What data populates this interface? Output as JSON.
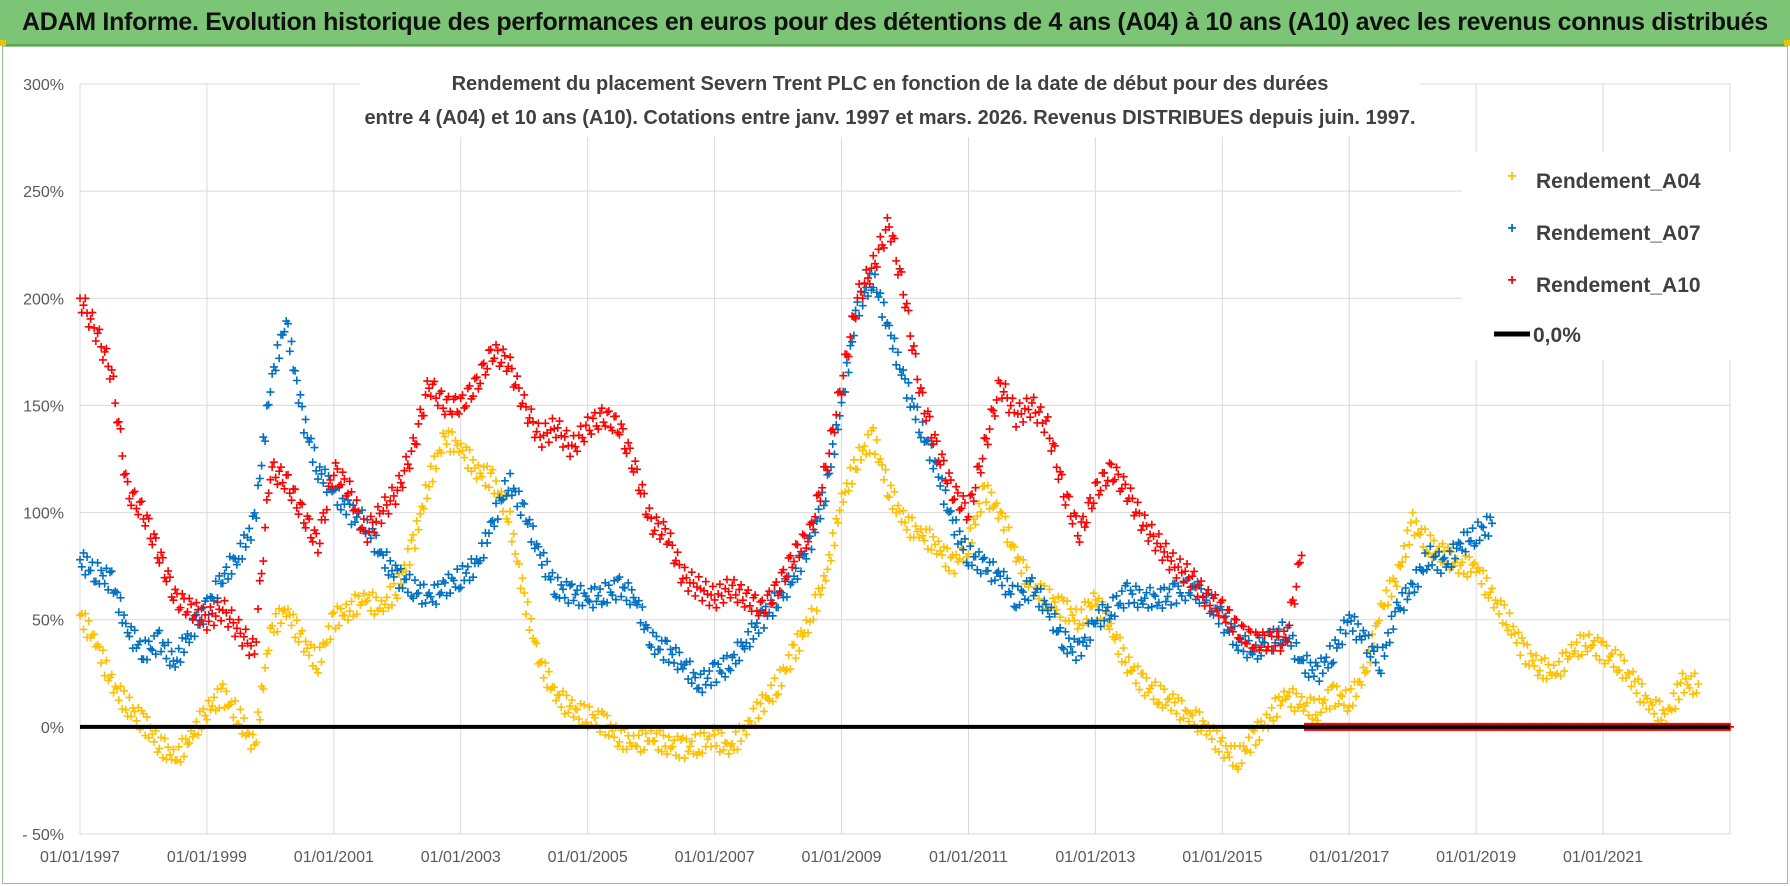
{
  "banner": {
    "title": "ADAM Informe. Evolution historique des performances en euros pour des détentions de 4 ans (A04) à 10 ans (A10) avec les revenus connus distribués"
  },
  "colors": {
    "banner_bg": "#7cc576",
    "a04": "#ffc000",
    "a07": "#0070c0",
    "a10": "#ff0000",
    "zero": "#000000",
    "grid": "#d9d9d9"
  },
  "chart_data": {
    "type": "scatter",
    "title_line1": "Rendement du placement Severn Trent PLC en fonction de la date de début pour des durées",
    "title_line2": "entre 4 (A04) et 10 ans (A10).  Cotations entre janv. 1997 et mars. 2026.  Revenus DISTRIBUES depuis juin. 1997.",
    "xlabel": "",
    "ylabel": "",
    "xlim": [
      1997.0,
      2023.0
    ],
    "ylim": [
      -50,
      300
    ],
    "y_ticks": [
      -50,
      0,
      50,
      100,
      150,
      200,
      250,
      300
    ],
    "y_tick_labels": [
      "- 50%",
      "0%",
      "50%",
      "100%",
      "150%",
      "200%",
      "250%",
      "300%"
    ],
    "x_ticks": [
      1997,
      1999,
      2001,
      2003,
      2005,
      2007,
      2009,
      2011,
      2013,
      2015,
      2017,
      2019,
      2021
    ],
    "x_tick_labels": [
      "01/01/1997",
      "01/01/1999",
      "01/01/2001",
      "01/01/2003",
      "01/01/2005",
      "01/01/2007",
      "01/01/2009",
      "01/01/2011",
      "01/01/2013",
      "01/01/2015",
      "01/01/2017",
      "01/01/2019",
      "01/01/2021"
    ],
    "legend_position": "top-right",
    "series": [
      {
        "name": "Rendement_A04",
        "marker": "plus",
        "x": [
          1997.0,
          1997.25,
          1997.5,
          1997.75,
          1998.0,
          1998.25,
          1998.5,
          1998.75,
          1999.0,
          1999.25,
          1999.5,
          1999.75,
          2000.0,
          2000.25,
          2000.5,
          2000.75,
          2001.0,
          2001.25,
          2001.5,
          2001.75,
          2002.0,
          2002.25,
          2002.5,
          2002.75,
          2003.0,
          2003.25,
          2003.5,
          2003.75,
          2004.0,
          2004.25,
          2004.5,
          2004.75,
          2005.0,
          2005.25,
          2005.5,
          2005.75,
          2006.0,
          2006.25,
          2006.5,
          2006.75,
          2007.0,
          2007.25,
          2007.5,
          2007.75,
          2008.0,
          2008.25,
          2008.5,
          2008.75,
          2009.0,
          2009.25,
          2009.5,
          2009.75,
          2010.0,
          2010.25,
          2010.5,
          2010.75,
          2011.0,
          2011.25,
          2011.5,
          2011.75,
          2012.0,
          2012.25,
          2012.5,
          2012.75,
          2013.0,
          2013.25,
          2013.5,
          2013.75,
          2014.0,
          2014.25,
          2014.5,
          2014.75,
          2015.0,
          2015.25,
          2015.5,
          2015.75,
          2016.0,
          2016.25,
          2016.5,
          2016.75,
          2017.0,
          2017.25,
          2017.5,
          2017.75,
          2018.0,
          2018.25,
          2018.5,
          2018.75,
          2019.0,
          2019.25,
          2019.5,
          2019.75,
          2020.0,
          2020.25,
          2020.5,
          2020.75,
          2021.0,
          2021.25,
          2021.5,
          2021.75,
          2022.0,
          2022.25,
          2022.5
        ],
        "y": [
          52,
          40,
          20,
          10,
          2,
          -8,
          -15,
          -5,
          8,
          15,
          5,
          -10,
          45,
          55,
          40,
          30,
          50,
          55,
          60,
          55,
          65,
          85,
          115,
          135,
          130,
          120,
          115,
          100,
          60,
          30,
          15,
          8,
          5,
          2,
          -5,
          -8,
          -5,
          -8,
          -10,
          -8,
          -5,
          -10,
          0,
          10,
          20,
          35,
          50,
          70,
          105,
          125,
          135,
          110,
          95,
          90,
          85,
          75,
          85,
          110,
          100,
          80,
          65,
          60,
          55,
          50,
          60,
          45,
          30,
          20,
          15,
          10,
          5,
          0,
          -10,
          -15,
          -5,
          5,
          15,
          10,
          8,
          15,
          12,
          25,
          55,
          70,
          95,
          85,
          80,
          75,
          75,
          60,
          50,
          35,
          28,
          25,
          35,
          40,
          35,
          30,
          20,
          10,
          5,
          20,
          20
        ]
      },
      {
        "name": "Rendement_A07",
        "marker": "plus",
        "x": [
          1997.0,
          1997.25,
          1997.5,
          1997.75,
          1998.0,
          1998.25,
          1998.5,
          1998.75,
          1999.0,
          1999.25,
          1999.5,
          1999.75,
          2000.0,
          2000.25,
          2000.5,
          2000.75,
          2001.0,
          2001.25,
          2001.5,
          2001.75,
          2002.0,
          2002.25,
          2002.5,
          2002.75,
          2003.0,
          2003.25,
          2003.5,
          2003.75,
          2004.0,
          2004.25,
          2004.5,
          2004.75,
          2005.0,
          2005.25,
          2005.5,
          2005.75,
          2006.0,
          2006.25,
          2006.5,
          2006.75,
          2007.0,
          2007.25,
          2007.5,
          2007.75,
          2008.0,
          2008.25,
          2008.5,
          2008.75,
          2009.0,
          2009.25,
          2009.5,
          2009.75,
          2010.0,
          2010.25,
          2010.5,
          2010.75,
          2011.0,
          2011.25,
          2011.5,
          2011.75,
          2012.0,
          2012.25,
          2012.5,
          2012.75,
          2013.0,
          2013.25,
          2013.5,
          2013.75,
          2014.0,
          2014.25,
          2014.5,
          2014.75,
          2015.0,
          2015.25,
          2015.5,
          2015.75,
          2016.0,
          2016.25,
          2016.5,
          2016.75,
          2017.0,
          2017.25,
          2017.5,
          2017.75,
          2018.0,
          2018.25,
          2018.5,
          2018.75,
          2019.0,
          2019.25
        ],
        "y": [
          78,
          72,
          68,
          45,
          35,
          40,
          30,
          45,
          55,
          70,
          80,
          95,
          160,
          190,
          145,
          120,
          110,
          100,
          95,
          80,
          70,
          65,
          60,
          65,
          70,
          75,
          95,
          115,
          100,
          80,
          65,
          62,
          60,
          62,
          65,
          60,
          40,
          35,
          30,
          20,
          25,
          30,
          40,
          50,
          60,
          70,
          85,
          110,
          150,
          195,
          210,
          185,
          160,
          140,
          120,
          95,
          80,
          75,
          70,
          60,
          65,
          55,
          40,
          35,
          50,
          55,
          62,
          60,
          60,
          62,
          65,
          60,
          50,
          40,
          35,
          40,
          45,
          30,
          25,
          35,
          50,
          40,
          30,
          55,
          65,
          80,
          75,
          85,
          90,
          95
        ]
      },
      {
        "name": "Rendement_A10",
        "marker": "plus",
        "x": [
          1997.0,
          1997.25,
          1997.5,
          1997.75,
          1998.0,
          1998.25,
          1998.5,
          1998.75,
          1999.0,
          1999.25,
          1999.5,
          1999.75,
          2000.0,
          2000.25,
          2000.5,
          2000.75,
          2001.0,
          2001.25,
          2001.5,
          2001.75,
          2002.0,
          2002.25,
          2002.5,
          2002.75,
          2003.0,
          2003.25,
          2003.5,
          2003.75,
          2004.0,
          2004.25,
          2004.5,
          2004.75,
          2005.0,
          2005.25,
          2005.5,
          2005.75,
          2006.0,
          2006.25,
          2006.5,
          2006.75,
          2007.0,
          2007.25,
          2007.5,
          2007.75,
          2008.0,
          2008.25,
          2008.5,
          2008.75,
          2009.0,
          2009.25,
          2009.5,
          2009.75,
          2010.0,
          2010.25,
          2010.5,
          2010.75,
          2011.0,
          2011.25,
          2011.5,
          2011.75,
          2012.0,
          2012.25,
          2012.5,
          2012.75,
          2013.0,
          2013.25,
          2013.5,
          2013.75,
          2014.0,
          2014.25,
          2014.5,
          2014.75,
          2015.0,
          2015.25,
          2015.5,
          2015.75,
          2016.0,
          2016.25
        ],
        "y": [
          200,
          185,
          165,
          110,
          100,
          80,
          60,
          55,
          50,
          55,
          45,
          35,
          120,
          115,
          100,
          85,
          120,
          110,
          90,
          100,
          110,
          130,
          160,
          150,
          150,
          160,
          175,
          170,
          150,
          135,
          140,
          130,
          140,
          145,
          140,
          120,
          95,
          90,
          70,
          65,
          60,
          65,
          60,
          55,
          65,
          80,
          90,
          120,
          160,
          200,
          215,
          235,
          200,
          155,
          130,
          110,
          100,
          130,
          160,
          145,
          150,
          140,
          110,
          90,
          110,
          120,
          110,
          95,
          85,
          75,
          70,
          60,
          55,
          45,
          40,
          40,
          40,
          80
        ]
      },
      {
        "name": "0,0%",
        "marker": "line",
        "x": [
          1997.0,
          2023.0
        ],
        "y": [
          0,
          0
        ]
      },
      {
        "name": "",
        "marker": "plus",
        "x": [
          2016.3,
          2023.0
        ],
        "y": [
          0,
          0
        ]
      }
    ]
  }
}
